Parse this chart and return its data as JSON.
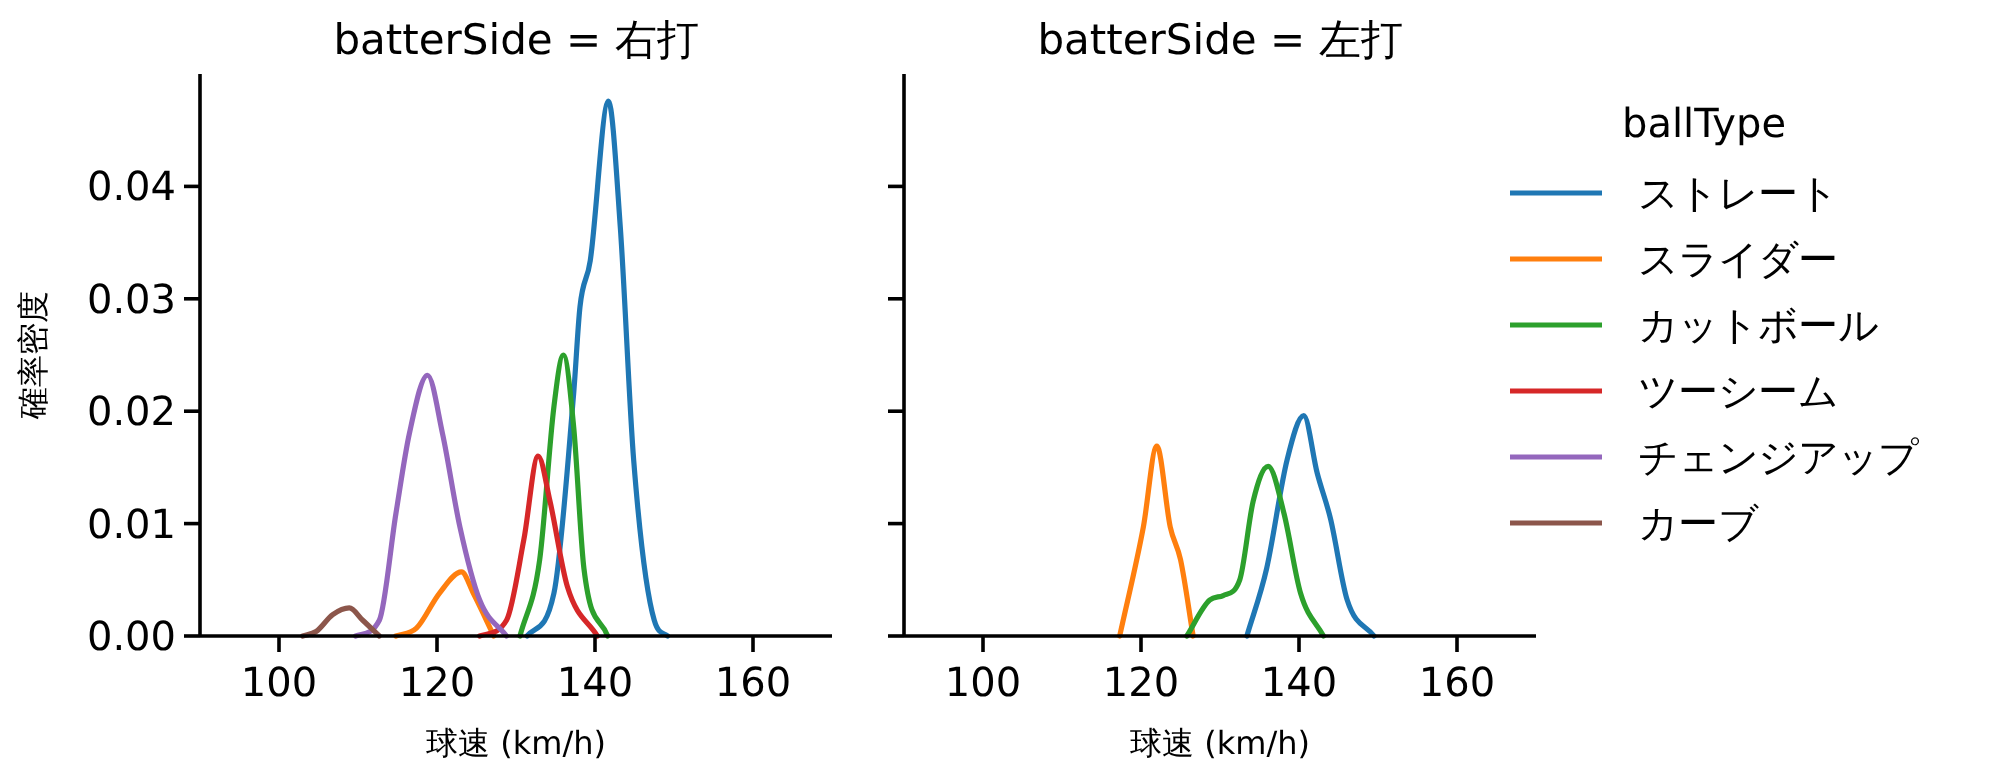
{
  "chart_data": [
    {
      "type": "line",
      "title": "batterSide = 右打",
      "xlabel": "球速 (km/h)",
      "ylabel": "確率密度",
      "legend_title": "ballType",
      "legend": "right",
      "grid": false,
      "xlim": [
        90,
        170
      ],
      "xticks": [
        100,
        120,
        140,
        160
      ],
      "ylim": [
        0,
        0.05
      ],
      "yticks": [
        {
          "value": 0,
          "label": "0.00"
        },
        {
          "value": 0.01,
          "label": "0.01"
        },
        {
          "value": 0.02,
          "label": "0.02"
        },
        {
          "value": 0.03,
          "label": "0.03"
        },
        {
          "value": 0.04,
          "label": "0.04"
        }
      ],
      "series": [
        {
          "name": "ストレート",
          "color": "#1f77b4",
          "x": [
            131.4,
            134.8,
            137.3,
            138.1,
            139.4,
            141.7,
            143.2,
            144.9,
            147.5,
            149.2
          ],
          "values": [
            0,
            0.0038,
            0.0216,
            0.0293,
            0.0334,
            0.0476,
            0.0364,
            0.0156,
            0.0014,
            0
          ]
        },
        {
          "name": "スライダー",
          "color": "#ff7f0e",
          "x": [
            114.8,
            117.4,
            120.3,
            123.1,
            124.6,
            127.2
          ],
          "values": [
            0,
            0.0007,
            0.0038,
            0.0057,
            0.0038,
            0
          ]
        },
        {
          "name": "カットボール",
          "color": "#2ca02c",
          "x": [
            130.5,
            133.0,
            134.8,
            136.0,
            137.3,
            138.6,
            141.6
          ],
          "values": [
            0,
            0.0068,
            0.0204,
            0.025,
            0.0186,
            0.006,
            0
          ]
        },
        {
          "name": "ツーシーム",
          "color": "#d62728",
          "x": [
            125.4,
            128.8,
            131.0,
            132.8,
            134.3,
            136.5,
            140.3
          ],
          "values": [
            0,
            0.0014,
            0.0086,
            0.016,
            0.012,
            0.0044,
            0
          ]
        },
        {
          "name": "チェンジアップ",
          "color": "#9467bd",
          "x": [
            109.7,
            112.7,
            114.8,
            116.5,
            118.8,
            120.7,
            122.9,
            125.4,
            128.8
          ],
          "values": [
            0,
            0.0014,
            0.0109,
            0.018,
            0.0232,
            0.018,
            0.0097,
            0.0032,
            0
          ]
        },
        {
          "name": "カーブ",
          "color": "#8c564b",
          "x": [
            103.0,
            104.7,
            106.8,
            108.9,
            110.6,
            112.7
          ],
          "values": [
            0,
            0.0004,
            0.0019,
            0.0025,
            0.0014,
            0
          ]
        }
      ]
    },
    {
      "type": "line",
      "title": "batterSide = 左打",
      "xlabel": "球速 (km/h)",
      "tick_labels": "x",
      "grid": false,
      "xlim": [
        90,
        170
      ],
      "xticks": [
        100,
        120,
        140,
        160
      ],
      "ylim": [
        0,
        0.05
      ],
      "yticks": [
        0,
        0.01,
        0.02,
        0.03,
        0.04
      ],
      "series": [
        {
          "color": "#1f77b4",
          "x": [
            133.4,
            135.9,
            138.5,
            140.6,
            142.3,
            144.0,
            146.1,
            149.5
          ],
          "values": [
            0,
            0.006,
            0.0157,
            0.0196,
            0.0145,
            0.0104,
            0.0032,
            0
          ]
        },
        {
          "color": "#ff7f0e",
          "x": [
            117.3,
            120.3,
            122.0,
            123.7,
            125.0,
            126.6
          ],
          "values": [
            0,
            0.0097,
            0.0169,
            0.0097,
            0.0068,
            0
          ]
        },
        {
          "color": "#2ca02c",
          "x": [
            125.8,
            128.7,
            130.4,
            132.5,
            134.2,
            136.1,
            138.1,
            140.2,
            143.1
          ],
          "values": [
            0,
            0.0032,
            0.0036,
            0.005,
            0.012,
            0.0151,
            0.0109,
            0.0038,
            0
          ]
        }
      ]
    }
  ]
}
